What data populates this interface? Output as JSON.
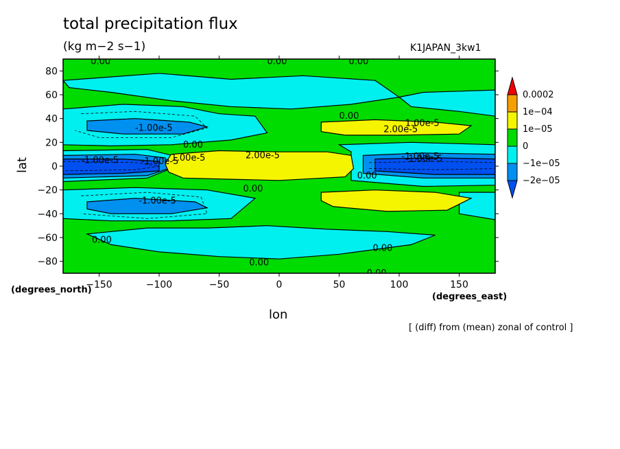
{
  "header": {
    "title": "total precipitation flux",
    "units": "(kg m−2 s−1)",
    "run_label": "K1JAPAN_3kw1"
  },
  "axes": {
    "xlabel": "lon",
    "ylabel": "lat",
    "x_units": "(degrees_east)",
    "y_units": "(degrees_north)"
  },
  "footnote": "[ (diff) from (mean) zonal of control ]",
  "colors": {
    "red": "#f00000",
    "orange": "#f5a000",
    "yellow": "#f5f500",
    "green": "#00dc00",
    "cyan": "#00f0f0",
    "blue": "#0090f0",
    "dark_blue": "#0050f0",
    "background": "#ffffff"
  },
  "chart_data": {
    "type": "contour",
    "title": "total precipitation flux",
    "subtitle": "(kg m−2 s−1)",
    "xlabel": "lon",
    "ylabel": "lat",
    "xlim": [
      -180,
      180
    ],
    "ylim": [
      -90,
      90
    ],
    "x_ticks": [
      -150,
      -100,
      -50,
      0,
      50,
      100,
      150
    ],
    "y_ticks": [
      80,
      60,
      40,
      20,
      0,
      -20,
      -40,
      -60,
      -80
    ],
    "colorbar": {
      "levels": [
        "0.0002",
        "1e−04",
        "1e−05",
        "0",
        "−1e−05",
        "−2e−05"
      ],
      "colors": [
        "#f00000",
        "#f5a000",
        "#f5f500",
        "#00dc00",
        "#00f0f0",
        "#0090f0",
        "#0050f0"
      ]
    },
    "regions": [
      {
        "value": "positive",
        "lon": [
          -90,
          60
        ],
        "lat": [
          -12,
          12
        ],
        "peak": "2.00e-5"
      },
      {
        "value": "positive",
        "lon": [
          30,
          160
        ],
        "lat": [
          25,
          40
        ],
        "peak": "2.00e-5"
      },
      {
        "value": "positive",
        "lon": [
          30,
          160
        ],
        "lat": [
          -40,
          -20
        ],
        "peak": "1.00e-5"
      },
      {
        "value": "negative",
        "lon": [
          -180,
          -90
        ],
        "lat": [
          -10,
          10
        ],
        "peak": "-1.00e-5"
      },
      {
        "value": "negative",
        "lon": [
          65,
          180
        ],
        "lat": [
          -10,
          10
        ],
        "peak": "-1.00e-5"
      },
      {
        "value": "negative",
        "lon": [
          -160,
          -60
        ],
        "lat": [
          25,
          42
        ],
        "peak": "-1.00e-5"
      },
      {
        "value": "negative",
        "lon": [
          -160,
          -60
        ],
        "lat": [
          -40,
          -25
        ],
        "peak": "-1.00e-5"
      }
    ],
    "contour_labels": [
      "0.00",
      "0.00",
      "0.00",
      "0.00",
      "0.00",
      "0.00",
      "0.00",
      "0.00",
      "0.00",
      "0.00",
      "0.00",
      "-1.00e-5",
      "-1.00e-5",
      "-1.00e-5",
      "-1.00e-5",
      "-1.00e-5",
      "-1.00e-5",
      "1.00e-5",
      "1.00e-5",
      "2.00e-5",
      "2.00e-5"
    ]
  }
}
